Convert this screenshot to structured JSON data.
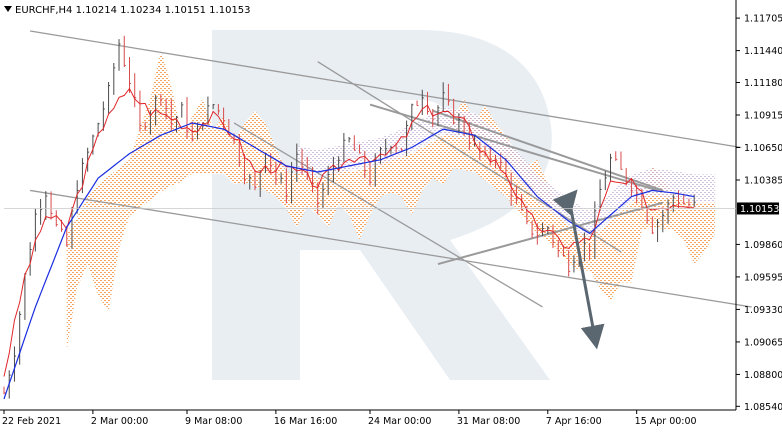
{
  "chart_data": {
    "type": "line",
    "symbol": "EURCHF",
    "timeframe": "H4",
    "ohlc": {
      "open": "1.10214",
      "high": "1.10234",
      "low": "1.10151",
      "close": "1.10153"
    },
    "title": "EURCHF,H4  1.10214 1.10234 1.10151 1.10153",
    "current_price": "1.10153",
    "ylim": [
      1.0851,
      1.1182
    ],
    "y_ticks": [
      "1.11705",
      "1.11440",
      "1.11180",
      "1.10915",
      "1.10650",
      "1.10385",
      "1.09860",
      "1.09595",
      "1.09330",
      "1.09065",
      "1.08800",
      "1.08540"
    ],
    "x_ticks": [
      "22 Feb 2021",
      "2 Mar 00:00",
      "9 Mar 08:00",
      "16 Mar 16:00",
      "24 Mar 00:00",
      "31 Mar 08:00",
      "7 Apr 16:00",
      "15 Apr 00:00"
    ],
    "bars_total": 140,
    "x_tick_bars": [
      0,
      17,
      35,
      52,
      70,
      87,
      104,
      121
    ],
    "grid": false,
    "price": [
      [
        0,
        1.0865
      ],
      [
        2,
        1.09
      ],
      [
        4,
        1.096
      ],
      [
        6,
        1.101
      ],
      [
        8,
        1.103
      ],
      [
        10,
        1.1
      ],
      [
        12,
        1.0985
      ],
      [
        14,
        1.1035
      ],
      [
        16,
        1.106
      ],
      [
        18,
        1.1085
      ],
      [
        20,
        1.111
      ],
      [
        22,
        1.115
      ],
      [
        24,
        1.112
      ],
      [
        26,
        1.108
      ],
      [
        28,
        1.1095
      ],
      [
        30,
        1.111
      ],
      [
        32,
        1.1085
      ],
      [
        34,
        1.1095
      ],
      [
        36,
        1.107
      ],
      [
        38,
        1.109
      ],
      [
        40,
        1.11
      ],
      [
        42,
        1.109
      ],
      [
        44,
        1.107
      ],
      [
        46,
        1.1045
      ],
      [
        48,
        1.103
      ],
      [
        50,
        1.1065
      ],
      [
        52,
        1.104
      ],
      [
        54,
        1.103
      ],
      [
        56,
        1.106
      ],
      [
        58,
        1.104
      ],
      [
        60,
        1.102
      ],
      [
        62,
        1.104
      ],
      [
        64,
        1.106
      ],
      [
        66,
        1.107
      ],
      [
        68,
        1.1055
      ],
      [
        70,
        1.104
      ],
      [
        72,
        1.106
      ],
      [
        74,
        1.107
      ],
      [
        76,
        1.1065
      ],
      [
        78,
        1.1095
      ],
      [
        80,
        1.111
      ],
      [
        82,
        1.109
      ],
      [
        84,
        1.1105
      ],
      [
        86,
        1.109
      ],
      [
        88,
        1.108
      ],
      [
        90,
        1.1065
      ],
      [
        92,
        1.1055
      ],
      [
        94,
        1.106
      ],
      [
        96,
        1.104
      ],
      [
        98,
        1.102
      ],
      [
        100,
        1.1
      ],
      [
        102,
        1.0995
      ],
      [
        104,
        1.1
      ],
      [
        106,
        1.098
      ],
      [
        108,
        1.097
      ],
      [
        110,
        1.0985
      ],
      [
        112,
        1.0985
      ],
      [
        114,
        1.103
      ],
      [
        116,
        1.1055
      ],
      [
        118,
        1.1045
      ],
      [
        120,
        1.1035
      ],
      [
        122,
        1.102
      ],
      [
        124,
        1.1
      ],
      [
        126,
        1.101
      ],
      [
        128,
        1.1025
      ],
      [
        130,
        1.102
      ],
      [
        132,
        1.1017
      ]
    ],
    "ma_red": [
      [
        0,
        1.088
      ],
      [
        4,
        1.096
      ],
      [
        8,
        1.101
      ],
      [
        12,
        1.1
      ],
      [
        16,
        1.105
      ],
      [
        20,
        1.1095
      ],
      [
        24,
        1.111
      ],
      [
        28,
        1.1095
      ],
      [
        32,
        1.109
      ],
      [
        36,
        1.108
      ],
      [
        40,
        1.109
      ],
      [
        44,
        1.1075
      ],
      [
        48,
        1.1045
      ],
      [
        52,
        1.105
      ],
      [
        56,
        1.1045
      ],
      [
        60,
        1.1035
      ],
      [
        64,
        1.105
      ],
      [
        68,
        1.106
      ],
      [
        72,
        1.1055
      ],
      [
        76,
        1.107
      ],
      [
        80,
        1.1095
      ],
      [
        84,
        1.1095
      ],
      [
        88,
        1.1085
      ],
      [
        92,
        1.106
      ],
      [
        96,
        1.1045
      ],
      [
        100,
        1.101
      ],
      [
        104,
        1.0995
      ],
      [
        108,
        1.0985
      ],
      [
        112,
        1.099
      ],
      [
        116,
        1.1035
      ],
      [
        120,
        1.1035
      ],
      [
        124,
        1.1015
      ],
      [
        128,
        1.102
      ],
      [
        132,
        1.102
      ]
    ],
    "ma_blue": [
      [
        0,
        1.086
      ],
      [
        6,
        1.0935
      ],
      [
        12,
        1.1
      ],
      [
        18,
        1.104
      ],
      [
        24,
        1.106
      ],
      [
        30,
        1.1075
      ],
      [
        36,
        1.1085
      ],
      [
        42,
        1.108
      ],
      [
        48,
        1.1065
      ],
      [
        54,
        1.105
      ],
      [
        60,
        1.1045
      ],
      [
        66,
        1.105
      ],
      [
        72,
        1.1055
      ],
      [
        78,
        1.1065
      ],
      [
        84,
        1.108
      ],
      [
        90,
        1.1075
      ],
      [
        96,
        1.1055
      ],
      [
        102,
        1.1025
      ],
      [
        108,
        1.1005
      ],
      [
        112,
        1.0995
      ],
      [
        116,
        1.101
      ],
      [
        120,
        1.1025
      ],
      [
        124,
        1.103
      ],
      [
        128,
        1.1028
      ],
      [
        132,
        1.1025
      ]
    ],
    "trendlines": [
      {
        "from": [
          5,
          1.116
        ],
        "to": [
          141,
          1.1065
        ]
      },
      {
        "from": [
          5,
          1.103
        ],
        "to": [
          143,
          1.0935
        ]
      },
      {
        "from": [
          60,
          1.1135
        ],
        "to": [
          118,
          1.098
        ]
      },
      {
        "from": [
          44,
          1.1085
        ],
        "to": [
          103,
          1.0935
        ]
      },
      {
        "from": [
          70,
          1.11
        ],
        "to": [
          125,
          1.103
        ]
      },
      {
        "from": [
          82,
          1.1095
        ],
        "to": [
          126,
          1.103
        ]
      },
      {
        "from": [
          83,
          1.097
        ],
        "to": [
          126,
          1.102
        ]
      }
    ],
    "forecast_arrow": {
      "from": [
        108,
        1.1025
      ],
      "to": [
        113,
        1.091
      ]
    }
  }
}
